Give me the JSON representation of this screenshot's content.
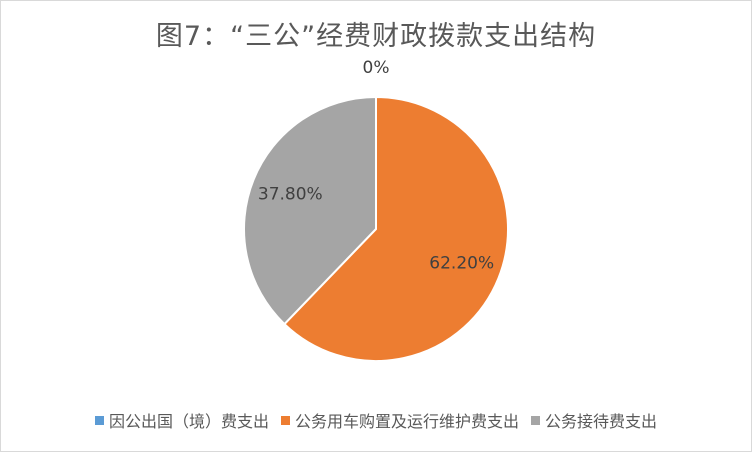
{
  "chart_data": {
    "type": "pie",
    "title": "图7：“三公”经费财政拨款支出结构",
    "slices": [
      {
        "name": "因公出国（境）费支出",
        "value": 0,
        "label": "0%",
        "color": "#5b9bd5"
      },
      {
        "name": "公务用车购置及运行维护费支出",
        "value": 62.2,
        "label": "62.20%",
        "color": "#ed7d31"
      },
      {
        "name": "公务接待费支出",
        "value": 37.8,
        "label": "37.80%",
        "color": "#a5a5a5"
      }
    ],
    "legend_position": "bottom"
  }
}
